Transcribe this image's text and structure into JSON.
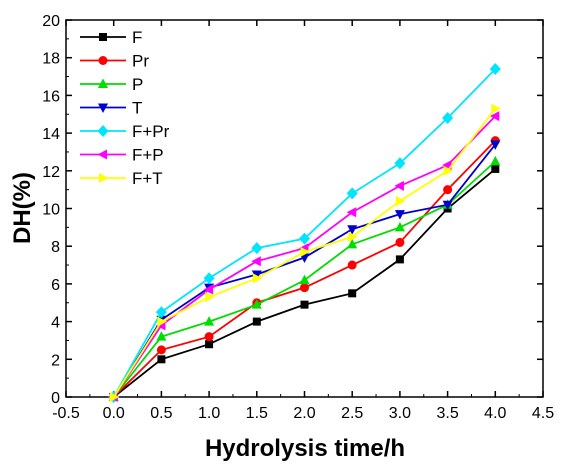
{
  "chart_data": {
    "type": "line",
    "xlabel": "Hydrolysis time/h",
    "ylabel": "DH(%)",
    "xlim": [
      -0.5,
      4.5
    ],
    "ylim": [
      0,
      20
    ],
    "x_ticks": [
      "-0.5",
      "0.0",
      "0.5",
      "1.0",
      "1.5",
      "2.0",
      "2.5",
      "3.0",
      "3.5",
      "4.0",
      "4.5"
    ],
    "y_ticks": [
      "0",
      "2",
      "4",
      "6",
      "8",
      "10",
      "12",
      "14",
      "16",
      "18",
      "20"
    ],
    "grid": false,
    "legend_position": "top-left",
    "x": [
      0.0,
      0.5,
      1.0,
      1.5,
      2.0,
      2.5,
      3.0,
      3.5,
      4.0
    ],
    "series": [
      {
        "name": "F",
        "color": "#000000",
        "marker": "square",
        "values": [
          0,
          2.0,
          2.8,
          4.0,
          4.9,
          5.5,
          7.3,
          10.0,
          12.1
        ]
      },
      {
        "name": "Pr",
        "color": "#ff0000",
        "marker": "circle",
        "values": [
          0,
          2.5,
          3.2,
          5.0,
          5.8,
          7.0,
          8.2,
          11.0,
          13.6
        ]
      },
      {
        "name": "P",
        "color": "#00dd00",
        "marker": "triangle-up",
        "values": [
          0,
          3.2,
          4.0,
          4.9,
          6.2,
          8.1,
          9.0,
          10.2,
          12.5
        ]
      },
      {
        "name": "T",
        "color": "#0000cc",
        "marker": "triangle-down",
        "values": [
          0,
          4.1,
          5.8,
          6.5,
          7.4,
          8.9,
          9.7,
          10.2,
          13.4
        ]
      },
      {
        "name": "F+Pr",
        "color": "#00e5ff",
        "marker": "diamond",
        "values": [
          0,
          4.5,
          6.3,
          7.9,
          8.4,
          10.8,
          12.4,
          14.8,
          17.4
        ]
      },
      {
        "name": "F+P",
        "color": "#ff00ff",
        "marker": "triangle-left",
        "values": [
          0,
          3.8,
          5.7,
          7.2,
          7.9,
          9.8,
          11.2,
          12.3,
          14.9
        ]
      },
      {
        "name": "F+T",
        "color": "#ffff00",
        "marker": "triangle-right",
        "values": [
          0,
          4.0,
          5.3,
          6.3,
          7.7,
          8.5,
          10.4,
          12.0,
          15.3
        ]
      }
    ]
  }
}
